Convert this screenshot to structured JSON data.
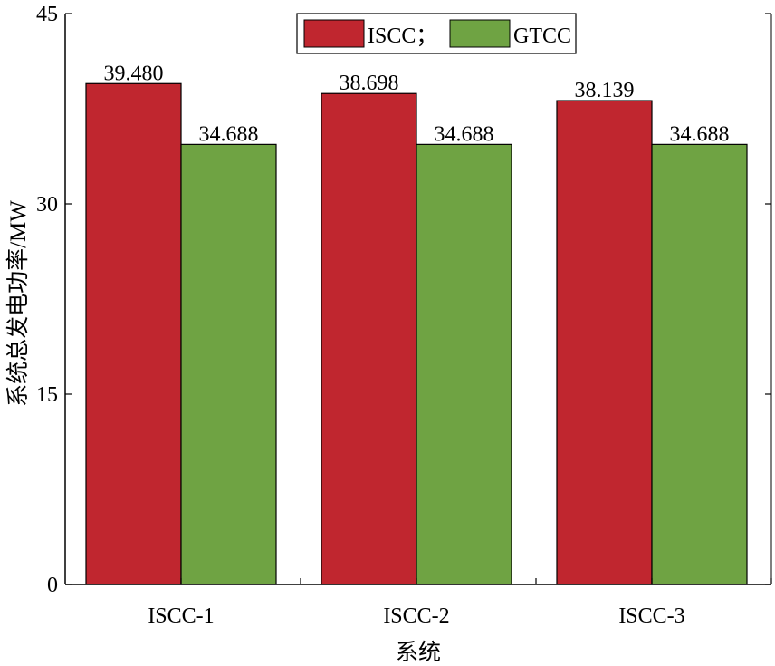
{
  "chart_data": {
    "type": "bar",
    "categories": [
      "ISCC-1",
      "ISCC-2",
      "ISCC-3"
    ],
    "series": [
      {
        "name": "ISCC；",
        "values": [
          39.48,
          38.698,
          38.139
        ],
        "color": "#C0262F"
      },
      {
        "name": "GTCC",
        "values": [
          34.688,
          34.688,
          34.688
        ],
        "color": "#6FA343"
      }
    ],
    "data_labels": [
      [
        "39.480",
        "34.688"
      ],
      [
        "38.698",
        "34.688"
      ],
      [
        "38.139",
        "34.688"
      ]
    ],
    "xlabel": "系统",
    "ylabel": "系统总发电功率/MW",
    "ylim": [
      0,
      45
    ],
    "yticks": [
      "0",
      "15",
      "30",
      "45"
    ],
    "grid": false,
    "legend_position": "top-center"
  }
}
